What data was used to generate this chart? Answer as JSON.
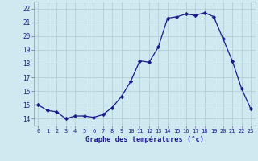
{
  "hours": [
    0,
    1,
    2,
    3,
    4,
    5,
    6,
    7,
    8,
    9,
    10,
    11,
    12,
    13,
    14,
    15,
    16,
    17,
    18,
    19,
    20,
    21,
    22,
    23
  ],
  "temps": [
    15.0,
    14.6,
    14.5,
    14.0,
    14.2,
    14.2,
    14.1,
    14.3,
    14.8,
    15.6,
    16.7,
    18.2,
    18.1,
    19.2,
    21.3,
    21.4,
    21.6,
    21.5,
    21.7,
    21.4,
    19.8,
    18.2,
    16.2,
    14.7
  ],
  "ylim": [
    13.5,
    22.5
  ],
  "yticks": [
    14,
    15,
    16,
    17,
    18,
    19,
    20,
    21,
    22
  ],
  "xticks": [
    0,
    1,
    2,
    3,
    4,
    5,
    6,
    7,
    8,
    9,
    10,
    11,
    12,
    13,
    14,
    15,
    16,
    17,
    18,
    19,
    20,
    21,
    22,
    23
  ],
  "xlabel": "Graphe des températures (°c)",
  "line_color": "#1a1a8c",
  "marker_color": "#1a1a8c",
  "bg_color": "#cee9f0",
  "grid_color": "#b0c8d0",
  "axis_label_color": "#1a1a8c",
  "tick_label_color": "#1a1a8c"
}
